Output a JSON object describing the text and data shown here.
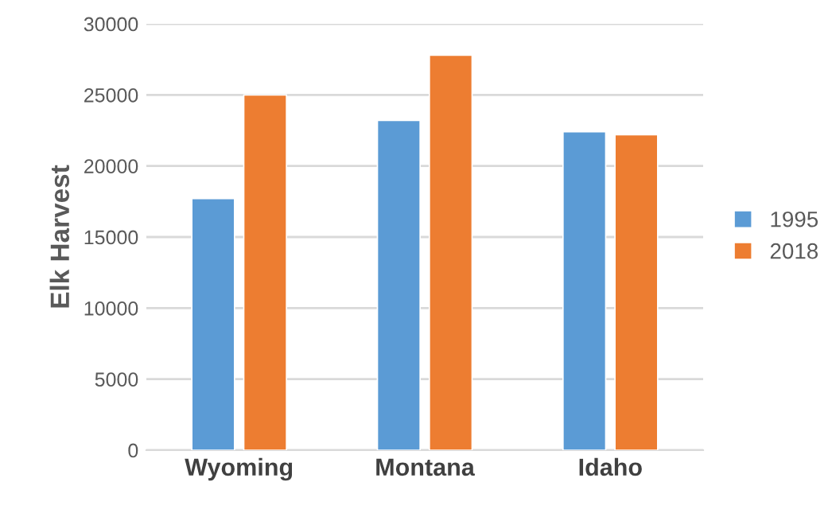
{
  "chart_data": {
    "type": "bar",
    "ylabel": "Elk Harvest",
    "categories": [
      "Wyoming",
      "Montana",
      "Idaho"
    ],
    "series": [
      {
        "name": "1995",
        "color": "#5b9bd5",
        "values": [
          17700,
          23200,
          22400
        ]
      },
      {
        "name": "2018",
        "color": "#ed7d31",
        "values": [
          25000,
          27800,
          22200
        ]
      }
    ],
    "ylim": [
      0,
      30000
    ],
    "yticks": [
      0,
      5000,
      10000,
      15000,
      20000,
      25000,
      30000
    ],
    "grid": "y",
    "legend": "right"
  }
}
